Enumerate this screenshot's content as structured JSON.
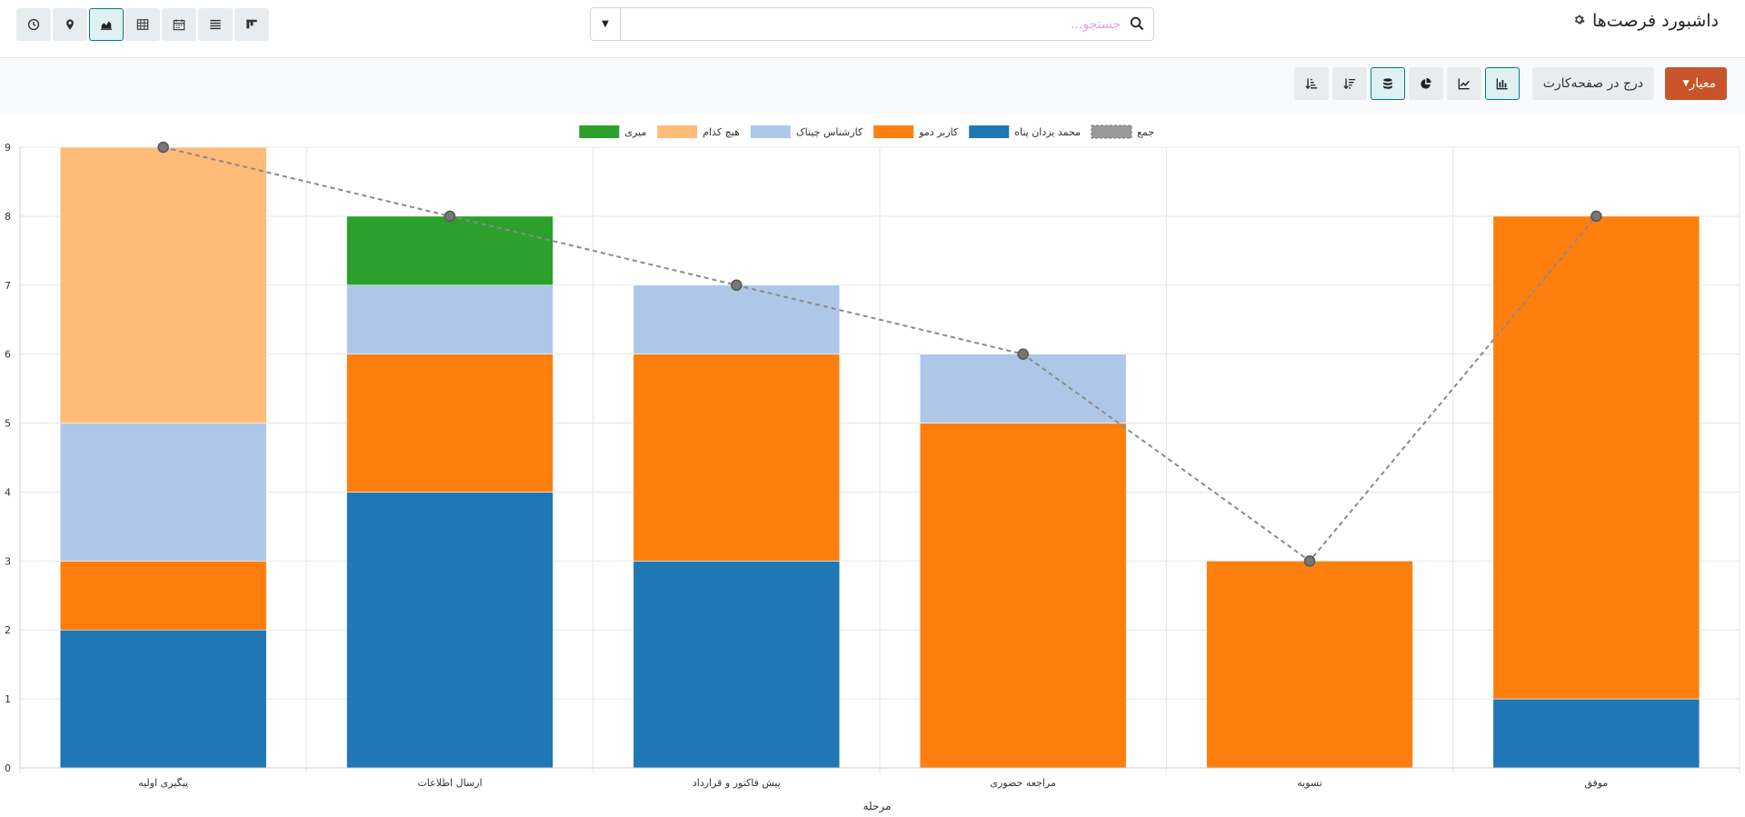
{
  "header": {
    "title": "داشبورد فرصت‌ها",
    "gear_icon": "gear-icon",
    "search_placeholder": "جستجو...",
    "views": [
      "activity-clock-icon",
      "map-pin-icon",
      "graph-icon",
      "pivot-table-icon",
      "calendar-icon",
      "list-icon",
      "kanban-icon"
    ],
    "active_view": "graph-icon"
  },
  "controls": {
    "measure_label": "معیار",
    "insert_label": "درج در صفحه‌کارت",
    "chart_type_buttons": [
      "bar-chart-icon",
      "line-chart-icon",
      "pie-chart-icon"
    ],
    "active_chart_type": "bar-chart-icon",
    "stacked_active": true
  },
  "chart_data": {
    "type": "bar",
    "stacked": true,
    "categories": [
      "پیگیری اولیه",
      "ارسال اطلاعات",
      "پیش فاکتور و قرارداد",
      "مراجعه حضوری",
      "تسویه",
      "موفق"
    ],
    "series": [
      {
        "name": "محمد یزدان پناه",
        "color": "#1f77b4",
        "values": [
          2,
          4,
          3,
          0,
          0,
          1
        ]
      },
      {
        "name": "کاربر دمو",
        "color": "#ff7f0e",
        "values": [
          1,
          2,
          3,
          5,
          3,
          7
        ]
      },
      {
        "name": "کارشناس چیتاک",
        "color": "#aec7e8",
        "values": [
          2,
          1,
          1,
          1,
          0,
          0
        ]
      },
      {
        "name": "هیچ کدام",
        "color": "#ffbb78",
        "values": [
          4,
          0,
          0,
          0,
          0,
          0
        ]
      },
      {
        "name": "میری",
        "color": "#2ca02c",
        "values": [
          0,
          1,
          0,
          0,
          0,
          0
        ]
      }
    ],
    "total_series": {
      "name": "جمع",
      "values": [
        9,
        8,
        7,
        6,
        3,
        8
      ],
      "style": "dashed-line"
    },
    "xlabel": "مرحله",
    "ylabel": "",
    "ylim": [
      0,
      9
    ],
    "yticks": [
      "0",
      "1",
      "2",
      "3",
      "4",
      "5",
      "6",
      "7",
      "8",
      "9"
    ],
    "grid": true,
    "legend_position": "top-center"
  }
}
